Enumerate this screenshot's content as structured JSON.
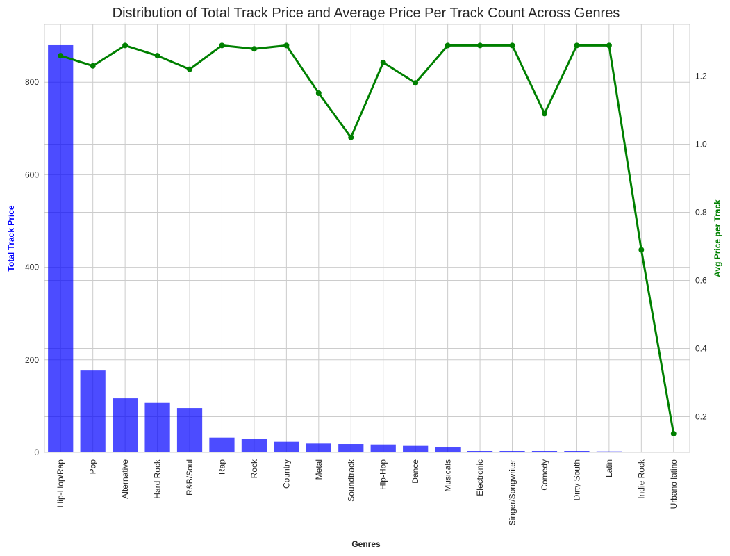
{
  "chart_data": {
    "type": "bar",
    "title": "Distribution of Total Track Price and Average Price Per Track Count Across Genres",
    "xlabel": "Genres",
    "ylabel": "Total Track Price",
    "y2label": "Avg Price per Track",
    "categories": [
      "Hip-Hop/Rap",
      "Pop",
      "Alternative",
      "Hard Rock",
      "R&B/Soul",
      "Rap",
      "Rock",
      "Country",
      "Metal",
      "Soundtrack",
      "Hip-Hop",
      "Dance",
      "Musicals",
      "Electronic",
      "Singer/Songwriter",
      "Comedy",
      "Dirty South",
      "Latin",
      "Indie Rock",
      "Urbano latino"
    ],
    "ylim": [
      0,
      925
    ],
    "y2lim": [
      0.095,
      1.352
    ],
    "yticks": [
      0,
      200,
      400,
      600,
      800
    ],
    "y2ticks": [
      0.2,
      0.4,
      0.6,
      0.8,
      1.0,
      1.2
    ],
    "grid": true,
    "series": [
      {
        "name": "Total Track Price",
        "type": "bar",
        "axis": "left",
        "color": "#0000ff",
        "values": [
          880,
          177,
          117,
          107,
          96,
          32,
          30,
          23,
          19,
          18,
          17,
          14,
          12,
          3,
          3,
          3,
          3,
          2,
          1,
          1
        ]
      },
      {
        "name": "Avg Price per Track",
        "type": "line",
        "axis": "right",
        "color": "#008000",
        "values": [
          1.26,
          1.23,
          1.29,
          1.26,
          1.22,
          1.29,
          1.28,
          1.29,
          1.15,
          1.02,
          1.24,
          1.18,
          1.29,
          1.29,
          1.29,
          1.09,
          1.29,
          1.29,
          0.69,
          0.15
        ]
      }
    ],
    "y_label_color": "#0000ff",
    "y2_label_color": "#008000"
  }
}
